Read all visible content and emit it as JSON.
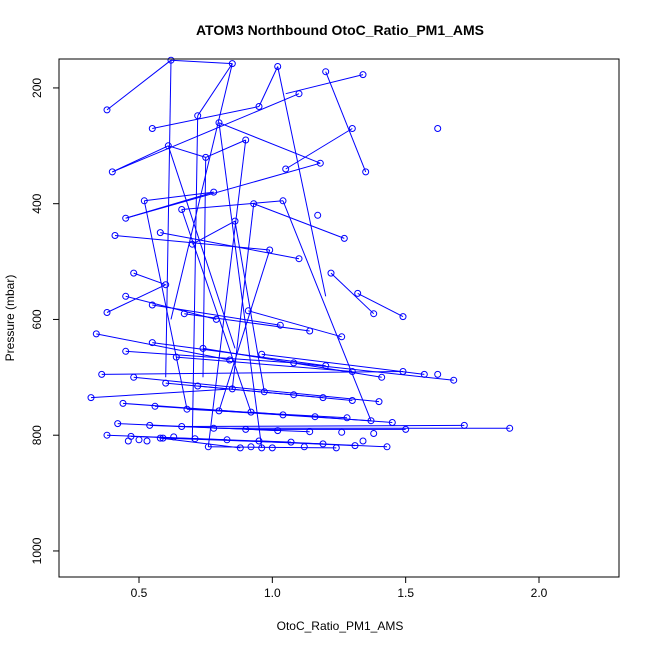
{
  "chart_data": {
    "type": "scatter",
    "title": "ATOM3 Northbound OtoC_Ratio_PM1_AMS",
    "xlabel": "OtoC_Ratio_PM1_AMS",
    "ylabel": "Pressure (mbar)",
    "xlim": [
      0.2,
      2.3
    ],
    "ylim": [
      1045,
      150
    ],
    "y_reversed": true,
    "x_ticks": [
      "0.5",
      "1.0",
      "1.5",
      "2.0"
    ],
    "y_ticks": [
      "200",
      "400",
      "600",
      "800",
      "1000"
    ],
    "color": "#0000ff",
    "grid": false,
    "points": [
      [
        0.38,
        238
      ],
      [
        0.62,
        152
      ],
      [
        0.85,
        158
      ],
      [
        1.02,
        163
      ],
      [
        1.2,
        172
      ],
      [
        1.34,
        177
      ],
      [
        1.1,
        210
      ],
      [
        0.95,
        232
      ],
      [
        0.72,
        248
      ],
      [
        0.55,
        270
      ],
      [
        0.4,
        345
      ],
      [
        0.61,
        300
      ],
      [
        0.75,
        320
      ],
      [
        0.9,
        290
      ],
      [
        1.05,
        340
      ],
      [
        1.18,
        330
      ],
      [
        1.35,
        345
      ],
      [
        1.3,
        270
      ],
      [
        1.62,
        270
      ],
      [
        0.8,
        260
      ],
      [
        0.45,
        425
      ],
      [
        0.52,
        395
      ],
      [
        0.66,
        410
      ],
      [
        0.78,
        380
      ],
      [
        0.93,
        400
      ],
      [
        1.04,
        395
      ],
      [
        1.17,
        420
      ],
      [
        1.27,
        460
      ],
      [
        0.41,
        455
      ],
      [
        0.58,
        450
      ],
      [
        0.7,
        470
      ],
      [
        0.86,
        430
      ],
      [
        0.99,
        480
      ],
      [
        1.1,
        495
      ],
      [
        1.22,
        520
      ],
      [
        1.32,
        555
      ],
      [
        1.38,
        590
      ],
      [
        1.49,
        595
      ],
      [
        0.48,
        520
      ],
      [
        0.6,
        540
      ],
      [
        0.38,
        588
      ],
      [
        0.45,
        560
      ],
      [
        0.55,
        575
      ],
      [
        0.67,
        590
      ],
      [
        0.79,
        600
      ],
      [
        0.91,
        585
      ],
      [
        1.03,
        610
      ],
      [
        1.14,
        620
      ],
      [
        1.26,
        630
      ],
      [
        0.34,
        625
      ],
      [
        0.45,
        655
      ],
      [
        0.55,
        640
      ],
      [
        0.64,
        665
      ],
      [
        0.74,
        650
      ],
      [
        0.84,
        670
      ],
      [
        0.96,
        660
      ],
      [
        1.08,
        675
      ],
      [
        1.2,
        680
      ],
      [
        1.3,
        690
      ],
      [
        1.41,
        700
      ],
      [
        1.49,
        690
      ],
      [
        1.57,
        695
      ],
      [
        1.62,
        695
      ],
      [
        1.68,
        705
      ],
      [
        0.36,
        695
      ],
      [
        0.48,
        700
      ],
      [
        0.6,
        710
      ],
      [
        0.72,
        715
      ],
      [
        0.85,
        720
      ],
      [
        0.97,
        725
      ],
      [
        1.08,
        730
      ],
      [
        1.19,
        735
      ],
      [
        1.3,
        740
      ],
      [
        1.4,
        742
      ],
      [
        0.32,
        735
      ],
      [
        0.44,
        745
      ],
      [
        0.56,
        750
      ],
      [
        0.68,
        755
      ],
      [
        0.8,
        758
      ],
      [
        0.92,
        760
      ],
      [
        1.04,
        765
      ],
      [
        1.16,
        768
      ],
      [
        1.28,
        770
      ],
      [
        1.37,
        775
      ],
      [
        1.45,
        778
      ],
      [
        0.42,
        780
      ],
      [
        0.54,
        783
      ],
      [
        0.66,
        785
      ],
      [
        0.78,
        788
      ],
      [
        0.9,
        790
      ],
      [
        1.02,
        792
      ],
      [
        1.14,
        794
      ],
      [
        1.26,
        795
      ],
      [
        1.38,
        797
      ],
      [
        1.5,
        790
      ],
      [
        1.72,
        783
      ],
      [
        1.89,
        788
      ],
      [
        0.38,
        800
      ],
      [
        0.47,
        802
      ],
      [
        0.59,
        805
      ],
      [
        0.71,
        806
      ],
      [
        0.83,
        808
      ],
      [
        0.95,
        810
      ],
      [
        1.07,
        812
      ],
      [
        1.19,
        815
      ],
      [
        1.31,
        818
      ],
      [
        1.43,
        820
      ],
      [
        0.46,
        810
      ],
      [
        0.58,
        805
      ],
      [
        0.76,
        820
      ],
      [
        0.88,
        822
      ],
      [
        1.0,
        822
      ],
      [
        1.12,
        820
      ],
      [
        1.24,
        822
      ],
      [
        0.92,
        820
      ],
      [
        0.96,
        822
      ],
      [
        0.5,
        808
      ],
      [
        0.53,
        810
      ],
      [
        0.63,
        803
      ],
      [
        1.34,
        810
      ]
    ],
    "segments": [
      [
        0.38,
        238,
        0.62,
        152
      ],
      [
        0.62,
        152,
        0.85,
        158
      ],
      [
        0.85,
        158,
        0.72,
        248
      ],
      [
        1.02,
        163,
        0.95,
        232
      ],
      [
        1.34,
        177,
        1.05,
        210
      ],
      [
        0.95,
        232,
        0.55,
        270
      ],
      [
        0.4,
        345,
        0.61,
        300
      ],
      [
        0.61,
        300,
        0.75,
        320
      ],
      [
        0.75,
        320,
        0.9,
        290
      ],
      [
        1.05,
        340,
        1.3,
        270
      ],
      [
        1.18,
        330,
        0.8,
        260
      ],
      [
        1.35,
        345,
        1.2,
        172
      ],
      [
        0.45,
        425,
        0.78,
        380
      ],
      [
        0.78,
        380,
        0.52,
        395
      ],
      [
        0.66,
        410,
        1.04,
        395
      ],
      [
        0.93,
        400,
        1.27,
        460
      ],
      [
        0.41,
        455,
        0.99,
        480
      ],
      [
        0.58,
        450,
        1.1,
        495
      ],
      [
        0.7,
        470,
        0.86,
        430
      ],
      [
        1.22,
        520,
        1.38,
        590
      ],
      [
        1.32,
        555,
        1.49,
        595
      ],
      [
        0.48,
        520,
        0.6,
        540
      ],
      [
        0.6,
        540,
        0.38,
        588
      ],
      [
        0.45,
        560,
        0.79,
        600
      ],
      [
        0.55,
        575,
        1.03,
        610
      ],
      [
        0.67,
        590,
        1.14,
        620
      ],
      [
        0.91,
        585,
        1.26,
        630
      ],
      [
        0.34,
        625,
        0.84,
        670
      ],
      [
        0.45,
        655,
        1.08,
        675
      ],
      [
        0.55,
        640,
        1.2,
        680
      ],
      [
        0.64,
        665,
        1.3,
        690
      ],
      [
        0.74,
        650,
        1.41,
        700
      ],
      [
        0.96,
        660,
        1.57,
        695
      ],
      [
        1.08,
        675,
        1.68,
        705
      ],
      [
        0.36,
        695,
        1.49,
        690
      ],
      [
        0.48,
        700,
        1.4,
        742
      ],
      [
        0.6,
        710,
        1.19,
        735
      ],
      [
        0.72,
        715,
        1.3,
        740
      ],
      [
        0.32,
        735,
        0.85,
        720
      ],
      [
        0.44,
        745,
        1.04,
        765
      ],
      [
        0.56,
        750,
        1.16,
        768
      ],
      [
        0.68,
        755,
        1.28,
        770
      ],
      [
        0.8,
        758,
        1.37,
        775
      ],
      [
        0.92,
        760,
        1.45,
        778
      ],
      [
        0.42,
        780,
        1.02,
        792
      ],
      [
        0.54,
        783,
        1.14,
        794
      ],
      [
        0.66,
        785,
        1.72,
        783
      ],
      [
        0.78,
        788,
        1.89,
        788
      ],
      [
        0.9,
        790,
        1.5,
        790
      ],
      [
        0.38,
        800,
        0.83,
        808
      ],
      [
        0.47,
        802,
        1.07,
        812
      ],
      [
        0.59,
        805,
        1.19,
        815
      ],
      [
        0.71,
        806,
        1.31,
        818
      ],
      [
        0.95,
        810,
        1.43,
        820
      ],
      [
        0.76,
        820,
        1.24,
        822
      ],
      [
        0.58,
        805,
        0.88,
        822
      ],
      [
        0.85,
        158,
        0.62,
        600
      ],
      [
        0.72,
        248,
        0.7,
        810
      ],
      [
        0.9,
        290,
        0.76,
        820
      ],
      [
        0.62,
        152,
        0.6,
        700
      ],
      [
        0.8,
        260,
        0.96,
        822
      ],
      [
        1.02,
        163,
        1.2,
        560
      ],
      [
        0.61,
        300,
        0.86,
        650
      ],
      [
        0.75,
        320,
        0.74,
        700
      ],
      [
        0.93,
        400,
        0.85,
        720
      ],
      [
        0.66,
        410,
        0.92,
        760
      ],
      [
        1.1,
        210,
        0.4,
        345
      ],
      [
        1.18,
        330,
        0.45,
        425
      ],
      [
        0.99,
        480,
        0.8,
        758
      ],
      [
        0.86,
        430,
        0.97,
        725
      ],
      [
        0.52,
        395,
        0.68,
        755
      ],
      [
        1.04,
        395,
        1.37,
        775
      ]
    ]
  }
}
